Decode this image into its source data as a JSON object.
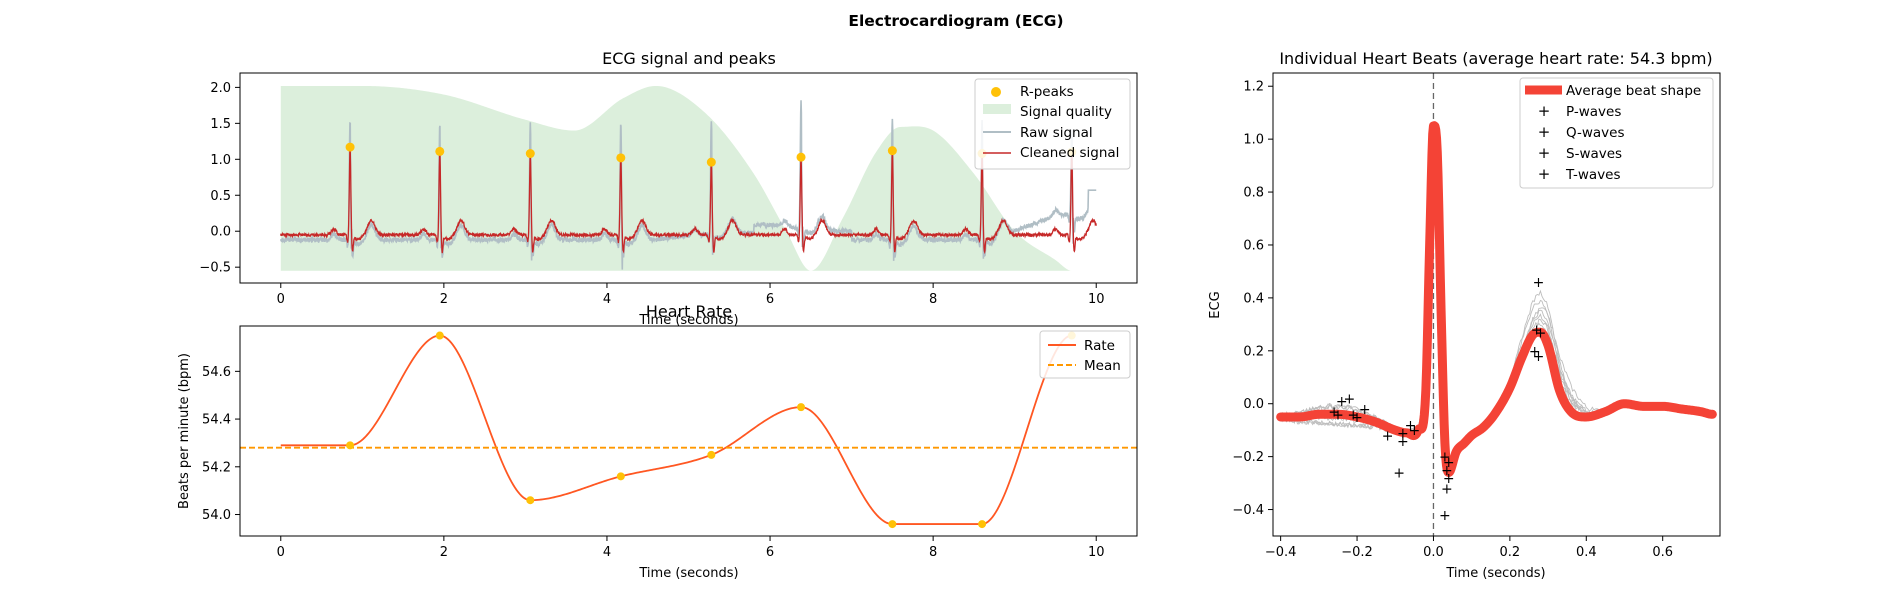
{
  "figure": {
    "title": "Electrocardiogram (ECG)"
  },
  "chart_data": [
    {
      "id": "ecg",
      "type": "line",
      "title": "ECG signal and peaks",
      "xlabel": "Time (seconds)",
      "ylabel": "",
      "xlim": [
        -0.5,
        10.5
      ],
      "ylim": [
        -0.72,
        2.2
      ],
      "xticks": [
        0,
        2,
        4,
        6,
        8,
        10
      ],
      "yticks": [
        -0.5,
        0.0,
        0.5,
        1.0,
        1.5,
        2.0
      ],
      "ytick_labels": [
        "−0.5",
        "0.0",
        "0.5",
        "1.0",
        "1.5",
        "2.0"
      ],
      "legend_position": "top-right",
      "legend": [
        "R-peaks",
        "Signal quality",
        "Raw signal",
        "Cleaned signal"
      ],
      "r_peaks": {
        "x": [
          0.85,
          1.95,
          3.06,
          4.17,
          5.28,
          6.38,
          7.5,
          8.6,
          9.7
        ],
        "y": [
          1.17,
          1.11,
          1.08,
          1.02,
          0.96,
          1.03,
          1.12,
          1.08,
          1.1
        ]
      },
      "signal_quality": {
        "x": [
          0,
          1,
          2,
          3,
          3.6,
          4.2,
          4.6,
          5.2,
          5.8,
          6.2,
          6.5,
          6.9,
          7.3,
          7.6,
          8.0,
          8.5,
          9.0,
          9.5,
          9.7
        ],
        "y": [
          2.02,
          2.02,
          1.9,
          1.55,
          1.4,
          1.85,
          2.02,
          1.65,
          0.8,
          0.0,
          -0.55,
          0.2,
          1.1,
          1.45,
          1.4,
          0.8,
          0.0,
          -0.4,
          -0.55
        ],
        "baseline": -0.55
      },
      "raw_peak_tops": [
        1.57,
        1.5,
        1.51,
        1.5,
        1.48,
        1.65,
        1.58,
        1.55,
        1.1
      ],
      "colors": {
        "rpeaks": "#FFC107",
        "quality": "#DCEFDC",
        "raw": "#B0BEC5",
        "cleaned": "#C62828"
      }
    },
    {
      "id": "rate",
      "type": "line",
      "title": "Heart Rate",
      "xlabel": "Time (seconds)",
      "ylabel": "Beats per minute (bpm)",
      "xlim": [
        -0.5,
        10.5
      ],
      "ylim": [
        53.91,
        54.79
      ],
      "xticks": [
        0,
        2,
        4,
        6,
        8,
        10
      ],
      "yticks": [
        54.0,
        54.2,
        54.4,
        54.6
      ],
      "legend_position": "top-right",
      "legend": [
        "Rate",
        "Mean"
      ],
      "points": {
        "x": [
          0.85,
          1.95,
          3.06,
          4.17,
          5.28,
          6.38,
          7.5,
          8.6,
          9.7
        ],
        "y": [
          54.29,
          54.75,
          54.06,
          54.16,
          54.25,
          54.45,
          53.96,
          53.96,
          54.75
        ]
      },
      "start_value": 54.29,
      "mean": 54.28,
      "colors": {
        "rate": "#FF5722",
        "mean": "#FF9800",
        "points": "#FFC107"
      }
    },
    {
      "id": "beats",
      "type": "line",
      "title": "Individual Heart Beats (average heart rate: 54.3 bpm)",
      "xlabel": "Time (seconds)",
      "ylabel": "ECG",
      "xlim": [
        -0.42,
        0.75
      ],
      "ylim": [
        -0.5,
        1.25
      ],
      "xticks": [
        -0.4,
        -0.2,
        0.0,
        0.2,
        0.4,
        0.6
      ],
      "xtick_labels": [
        "−0.4",
        "−0.2",
        "0.0",
        "0.2",
        "0.4",
        "0.6"
      ],
      "yticks": [
        -0.4,
        -0.2,
        0.0,
        0.2,
        0.4,
        0.6,
        0.8,
        1.0,
        1.2
      ],
      "ytick_labels": [
        "−0.4",
        "−0.2",
        "0.0",
        "0.2",
        "0.4",
        "0.6",
        "0.8",
        "1.0",
        "1.2"
      ],
      "legend_position": "top-right",
      "legend": [
        "Average beat shape",
        "P-waves",
        "Q-waves",
        "S-waves",
        "T-waves"
      ],
      "average_beat": {
        "x": [
          -0.4,
          -0.35,
          -0.3,
          -0.25,
          -0.2,
          -0.15,
          -0.1,
          -0.07,
          -0.04,
          -0.02,
          -0.01,
          0.0,
          0.01,
          0.02,
          0.03,
          0.04,
          0.06,
          0.08,
          0.1,
          0.13,
          0.16,
          0.2,
          0.23,
          0.26,
          0.28,
          0.3,
          0.33,
          0.36,
          0.4,
          0.45,
          0.5,
          0.55,
          0.6,
          0.65,
          0.7,
          0.73
        ],
        "y": [
          -0.05,
          -0.05,
          -0.04,
          -0.04,
          -0.05,
          -0.07,
          -0.1,
          -0.11,
          -0.1,
          0.05,
          0.6,
          1.05,
          0.95,
          0.35,
          -0.15,
          -0.26,
          -0.18,
          -0.15,
          -0.12,
          -0.09,
          -0.04,
          0.06,
          0.17,
          0.26,
          0.27,
          0.22,
          0.05,
          -0.03,
          -0.05,
          -0.03,
          0.0,
          -0.01,
          -0.01,
          -0.02,
          -0.03,
          -0.04
        ]
      },
      "waves": {
        "P": {
          "x": [
            -0.26,
            -0.24,
            -0.22,
            -0.2,
            -0.18,
            -0.21,
            -0.25
          ],
          "y": [
            -0.03,
            0.01,
            0.02,
            -0.05,
            -0.02,
            -0.04,
            -0.04
          ]
        },
        "Q": {
          "x": [
            -0.09,
            -0.06,
            -0.05,
            -0.08,
            -0.12,
            -0.08
          ],
          "y": [
            -0.26,
            -0.08,
            -0.1,
            -0.14,
            -0.12,
            -0.11
          ]
        },
        "S": {
          "x": [
            0.03,
            0.035,
            0.04,
            0.03,
            0.04,
            0.035
          ],
          "y": [
            -0.42,
            -0.32,
            -0.28,
            -0.2,
            -0.22,
            -0.25
          ]
        },
        "T": {
          "x": [
            0.275,
            0.27,
            0.28,
            0.265,
            0.275
          ],
          "y": [
            0.46,
            0.28,
            0.27,
            0.2,
            0.18
          ]
        }
      },
      "colors": {
        "average": "#F44336",
        "P": "#283593",
        "Q": "#1976D2",
        "S": "#039BE5",
        "T": "#00ACC1",
        "beats": "#BDBDBD"
      }
    }
  ]
}
